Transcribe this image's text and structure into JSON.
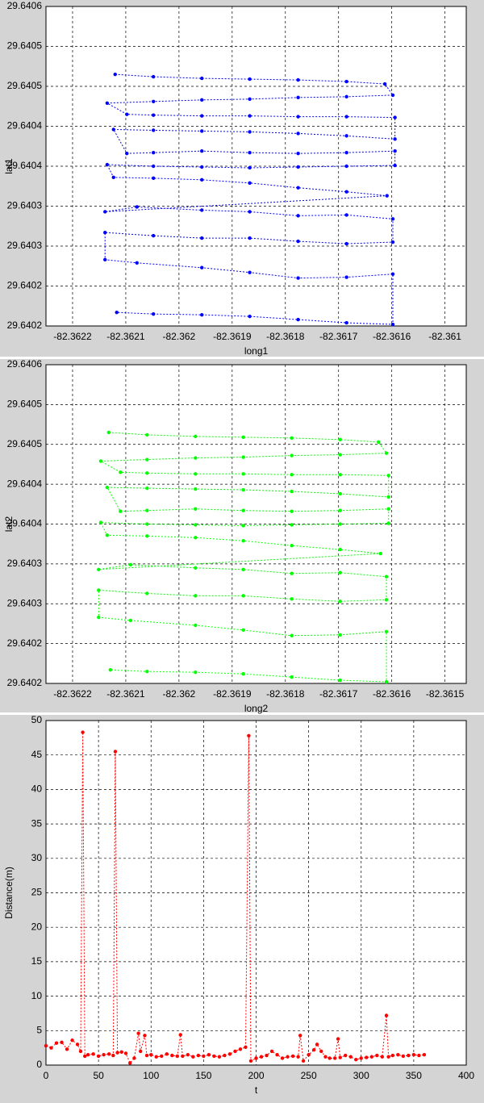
{
  "chart_data": [
    {
      "type": "line",
      "xlabel": "long1",
      "ylabel": "lat1",
      "color": "#0000ff",
      "line_style": "dotted",
      "marker": true,
      "grid": true,
      "xlim": [
        -82.36225,
        -82.36146
      ],
      "xticks": [
        -82.3622,
        -82.3621,
        -82.362,
        -82.3619,
        -82.3618,
        -82.3617,
        -82.3616,
        {
          "value": -82.3615,
          "label": "-82.361"
        }
      ],
      "ylim": [
        29.6402,
        29.6406
      ],
      "yticks": [
        29.6402,
        {
          "value": 29.64025,
          "label": "29.6402"
        },
        29.6403,
        {
          "value": 29.64035,
          "label": "29.6403"
        },
        29.6404,
        {
          "value": 29.64045,
          "label": "29.6404"
        },
        29.6405,
        {
          "value": 29.64055,
          "label": "29.6405"
        },
        29.6406
      ],
      "x": [
        -82.36212,
        -82.362048,
        -82.361957,
        -82.361867,
        -82.361776,
        -82.361685,
        -82.361613,
        -82.361598,
        -82.361685,
        -82.361776,
        -82.361867,
        -82.361957,
        -82.362048,
        -82.362135,
        -82.362098,
        -82.362048,
        -82.361957,
        -82.361867,
        -82.361776,
        -82.361685,
        -82.361594,
        -82.361594,
        -82.361685,
        -82.361776,
        -82.361867,
        -82.361957,
        -82.362048,
        -82.362123,
        -82.362098,
        -82.362048,
        -82.361957,
        -82.361867,
        -82.361776,
        -82.361685,
        -82.361594,
        -82.361594,
        -82.361685,
        -82.361776,
        -82.361867,
        -82.361957,
        -82.362048,
        -82.362135,
        -82.362123,
        -82.362048,
        -82.361957,
        -82.361867,
        -82.361776,
        -82.361685,
        -82.361609,
        -82.362139,
        -82.362079,
        -82.361957,
        -82.361867,
        -82.361776,
        -82.361685,
        -82.361598,
        -82.361598,
        -82.361685,
        -82.361776,
        -82.361867,
        -82.361957,
        -82.362048,
        -82.362139,
        -82.362139,
        -82.362079,
        -82.361957,
        -82.361867,
        -82.361776,
        -82.361685,
        -82.361598,
        -82.361598,
        -82.361685,
        -82.361776,
        -82.361867,
        -82.361957,
        -82.362048,
        -82.362117
      ],
      "values": [
        29.640515,
        29.640512,
        29.64051,
        29.640509,
        29.640508,
        29.640506,
        29.640503,
        29.640489,
        29.640487,
        29.640486,
        29.640484,
        29.640483,
        29.640481,
        29.640479,
        29.640465,
        29.640464,
        29.640463,
        29.640463,
        29.640462,
        29.640462,
        29.640461,
        29.640434,
        29.640438,
        29.640441,
        29.640443,
        29.640444,
        29.640445,
        29.640446,
        29.640416,
        29.640417,
        29.640419,
        29.640417,
        29.640416,
        29.640417,
        29.640419,
        29.640401,
        29.6404,
        29.640399,
        29.640398,
        29.640399,
        29.6404,
        29.640402,
        29.640386,
        29.640385,
        29.640383,
        29.640379,
        29.640373,
        29.640368,
        29.640363,
        29.640343,
        29.640349,
        29.640345,
        29.640343,
        29.640338,
        29.640339,
        29.640334,
        29.640305,
        29.640303,
        29.640306,
        29.64031,
        29.64031,
        29.640313,
        29.640317,
        29.640283,
        29.640279,
        29.640273,
        29.640267,
        29.64026,
        29.640261,
        29.640265,
        29.640202,
        29.640204,
        29.640208,
        29.640212,
        29.640214,
        29.640215,
        29.640217
      ]
    },
    {
      "type": "line",
      "xlabel": "long2",
      "ylabel": "lat2",
      "color": "#00ff00",
      "line_style": "dotted",
      "marker": true,
      "grid": true,
      "xlim": [
        -82.36225,
        -82.36146
      ],
      "xticks": [
        -82.3622,
        -82.3621,
        -82.362,
        -82.3619,
        -82.3618,
        -82.3617,
        -82.3616,
        -82.3615
      ],
      "ylim": [
        29.6402,
        29.6406
      ],
      "yticks": [
        29.6402,
        {
          "value": 29.64025,
          "label": "29.6402"
        },
        29.6403,
        {
          "value": 29.64035,
          "label": "29.6403"
        },
        29.6404,
        {
          "value": 29.64045,
          "label": "29.6404"
        },
        29.6405,
        {
          "value": 29.64055,
          "label": "29.6405"
        },
        29.6406
      ],
      "x": [
        -82.362132,
        -82.36206,
        -82.361969,
        -82.361879,
        -82.361788,
        -82.361697,
        -82.361625,
        -82.36161,
        -82.361697,
        -82.361788,
        -82.361879,
        -82.361969,
        -82.36206,
        -82.362147,
        -82.36211,
        -82.36206,
        -82.361969,
        -82.361879,
        -82.361788,
        -82.361697,
        -82.361606,
        -82.361606,
        -82.361697,
        -82.361788,
        -82.361879,
        -82.361969,
        -82.36206,
        -82.362135,
        -82.36211,
        -82.36206,
        -82.361969,
        -82.361879,
        -82.361788,
        -82.361697,
        -82.361606,
        -82.361606,
        -82.361697,
        -82.361788,
        -82.361879,
        -82.361969,
        -82.36206,
        -82.362147,
        -82.362135,
        -82.36206,
        -82.361969,
        -82.361879,
        -82.361788,
        -82.361697,
        -82.361621,
        -82.362151,
        -82.362091,
        -82.361969,
        -82.361879,
        -82.361788,
        -82.361697,
        -82.36161,
        -82.36161,
        -82.361697,
        -82.361788,
        -82.361879,
        -82.361969,
        -82.36206,
        -82.362151,
        -82.362151,
        -82.362091,
        -82.361969,
        -82.361879,
        -82.361788,
        -82.361697,
        -82.36161,
        -82.36161,
        -82.361697,
        -82.361788,
        -82.361879,
        -82.361969,
        -82.36206,
        -82.362129
      ],
      "values": [
        29.640515,
        29.640512,
        29.64051,
        29.640509,
        29.640508,
        29.640506,
        29.640503,
        29.640489,
        29.640487,
        29.640486,
        29.640484,
        29.640483,
        29.640481,
        29.640479,
        29.640465,
        29.640464,
        29.640463,
        29.640463,
        29.640462,
        29.640462,
        29.640461,
        29.640434,
        29.640438,
        29.640441,
        29.640443,
        29.640444,
        29.640445,
        29.640446,
        29.640416,
        29.640417,
        29.640419,
        29.640417,
        29.640416,
        29.640417,
        29.640419,
        29.640401,
        29.6404,
        29.640399,
        29.640398,
        29.640399,
        29.6404,
        29.640402,
        29.640386,
        29.640385,
        29.640383,
        29.640379,
        29.640373,
        29.640368,
        29.640363,
        29.640343,
        29.640349,
        29.640345,
        29.640343,
        29.640338,
        29.640339,
        29.640334,
        29.640305,
        29.640303,
        29.640306,
        29.64031,
        29.64031,
        29.640313,
        29.640317,
        29.640283,
        29.640279,
        29.640273,
        29.640267,
        29.64026,
        29.640261,
        29.640265,
        29.640202,
        29.640204,
        29.640208,
        29.640212,
        29.640214,
        29.640215,
        29.640217
      ]
    },
    {
      "type": "line",
      "xlabel": "t",
      "ylabel": "Distance(m)",
      "color": "#ff0000",
      "line_style": "dotted",
      "marker": true,
      "grid": true,
      "xlim": [
        0,
        400
      ],
      "xticks": [
        0,
        50,
        100,
        150,
        200,
        250,
        300,
        350,
        400
      ],
      "ylim": [
        0,
        50
      ],
      "yticks": [
        0,
        5,
        10,
        15,
        20,
        25,
        30,
        35,
        40,
        45,
        50
      ],
      "x": [
        0,
        5,
        10,
        15,
        20,
        25,
        30,
        33,
        35,
        37,
        40,
        45,
        50,
        55,
        60,
        64,
        66,
        68,
        72,
        76,
        80,
        84,
        88,
        90,
        94,
        96,
        100,
        105,
        110,
        115,
        120,
        125,
        128,
        130,
        135,
        140,
        145,
        150,
        155,
        160,
        165,
        170,
        175,
        180,
        185,
        190,
        193,
        195,
        200,
        205,
        210,
        215,
        220,
        225,
        230,
        235,
        240,
        242,
        245,
        250,
        255,
        258,
        262,
        266,
        270,
        275,
        278,
        280,
        285,
        290,
        295,
        300,
        305,
        310,
        315,
        320,
        324,
        326,
        330,
        335,
        340,
        345,
        350,
        355,
        360
      ],
      "values": [
        2.8,
        2.5,
        3.2,
        3.3,
        2.3,
        3.6,
        3.0,
        2.0,
        48.3,
        1.3,
        1.5,
        1.6,
        1.3,
        1.5,
        1.6,
        1.4,
        45.5,
        1.8,
        1.9,
        1.7,
        0.3,
        1.0,
        4.6,
        2.0,
        4.3,
        1.4,
        1.5,
        1.2,
        1.3,
        1.6,
        1.4,
        1.3,
        4.4,
        1.3,
        1.5,
        1.2,
        1.4,
        1.3,
        1.5,
        1.3,
        1.2,
        1.4,
        1.6,
        2.0,
        2.3,
        2.6,
        47.8,
        0.6,
        1.0,
        1.2,
        1.4,
        2.0,
        1.5,
        1.0,
        1.2,
        1.3,
        1.2,
        4.3,
        0.6,
        1.5,
        2.2,
        3.0,
        2.0,
        1.2,
        1.0,
        1.0,
        3.8,
        1.1,
        1.4,
        1.2,
        0.8,
        1.0,
        1.1,
        1.2,
        1.4,
        1.2,
        7.2,
        1.2,
        1.4,
        1.5,
        1.3,
        1.4,
        1.5,
        1.4,
        1.5
      ]
    }
  ]
}
